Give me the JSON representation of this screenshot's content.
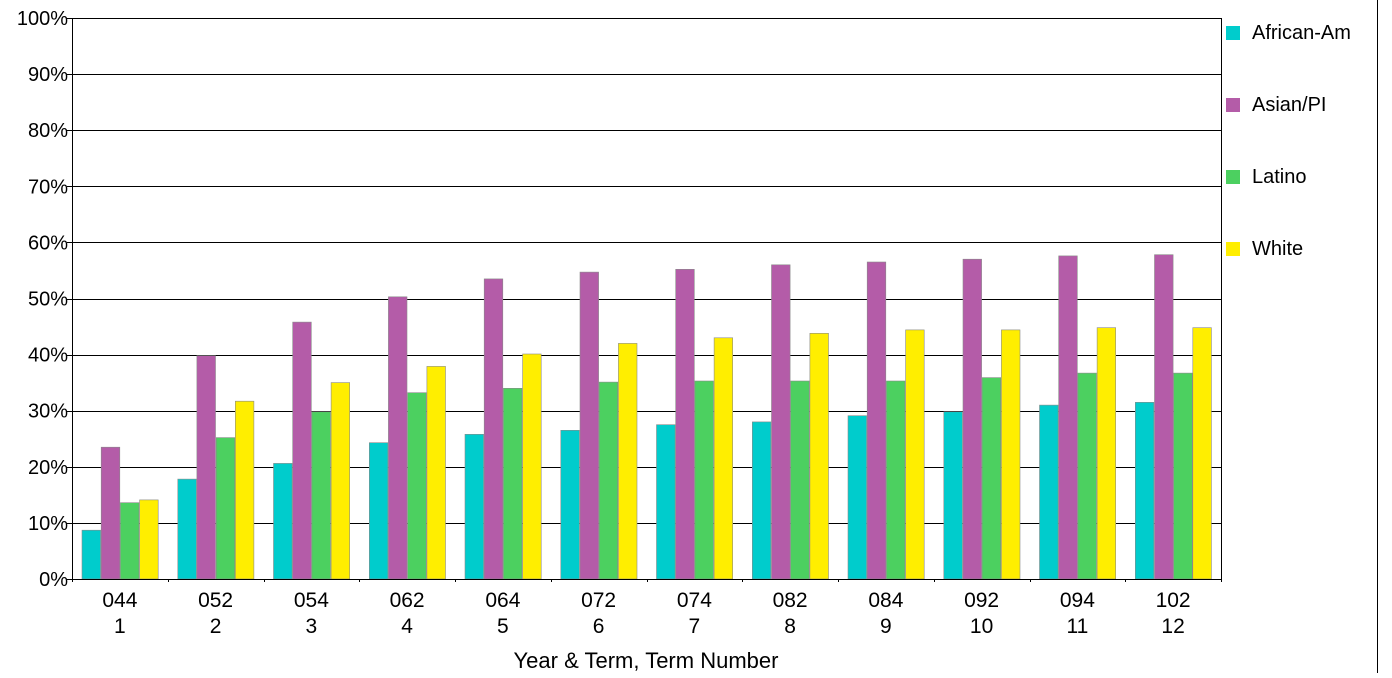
{
  "chart_data": {
    "type": "bar",
    "categories": [
      "044",
      "052",
      "054",
      "062",
      "064",
      "072",
      "074",
      "082",
      "084",
      "092",
      "094",
      "102"
    ],
    "category_sublabels": [
      "1",
      "2",
      "3",
      "4",
      "5",
      "6",
      "7",
      "8",
      "9",
      "10",
      "11",
      "12"
    ],
    "series": [
      {
        "name": "African-Am",
        "color": "#00cccc",
        "values": [
          8.7,
          17.8,
          20.6,
          24.3,
          25.8,
          26.5,
          27.5,
          28.0,
          29.1,
          29.8,
          31.0,
          31.5
        ]
      },
      {
        "name": "Asian/PI",
        "color": "#b45ca8",
        "values": [
          23.5,
          39.8,
          45.8,
          50.3,
          53.5,
          54.7,
          55.2,
          56.0,
          56.5,
          57.0,
          57.6,
          57.8
        ]
      },
      {
        "name": "Latino",
        "color": "#4cd060",
        "values": [
          13.6,
          25.2,
          29.8,
          33.2,
          34.0,
          35.1,
          35.3,
          35.3,
          35.3,
          35.9,
          36.7,
          36.7
        ]
      },
      {
        "name": "White",
        "color": "#ffee00",
        "values": [
          14.1,
          31.7,
          35.0,
          37.9,
          40.1,
          42.0,
          43.0,
          43.8,
          44.4,
          44.4,
          44.8,
          44.8
        ]
      }
    ],
    "title": "",
    "xlabel": "Year & Term, Term Number",
    "ylabel": "",
    "ylim": [
      0,
      100
    ],
    "ytick_values": [
      0,
      10,
      20,
      30,
      40,
      50,
      60,
      70,
      80,
      90,
      100
    ],
    "ytick_labels": [
      "0%",
      "10%",
      "20%",
      "30%",
      "40%",
      "50%",
      "60%",
      "70%",
      "80%",
      "90%",
      "100%"
    ],
    "grid": true,
    "legend_position": "right"
  }
}
